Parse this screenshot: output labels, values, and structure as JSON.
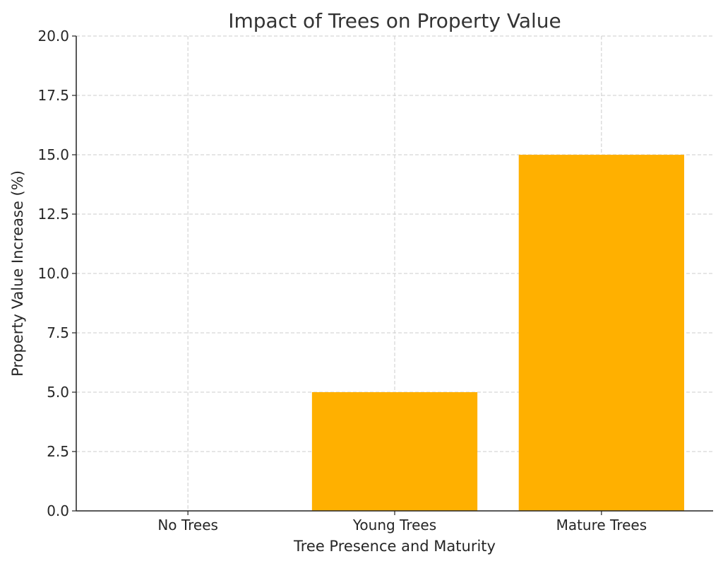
{
  "chart_data": {
    "type": "bar",
    "title": "Impact of Trees on Property Value",
    "xlabel": "Tree Presence and Maturity",
    "ylabel": "Property Value Increase (%)",
    "categories": [
      "No Trees",
      "Young Trees",
      "Mature Trees"
    ],
    "values": [
      0,
      5,
      15
    ],
    "ylim": [
      0,
      20
    ],
    "yticks": [
      0,
      2.5,
      5,
      7.5,
      10,
      12.5,
      15,
      17.5,
      20
    ],
    "ytick_labels": [
      "0.0",
      "2.5",
      "5.0",
      "7.5",
      "10.0",
      "12.5",
      "15.0",
      "17.5",
      "20.0"
    ],
    "grid": true,
    "bar_color": "#FFB000"
  }
}
